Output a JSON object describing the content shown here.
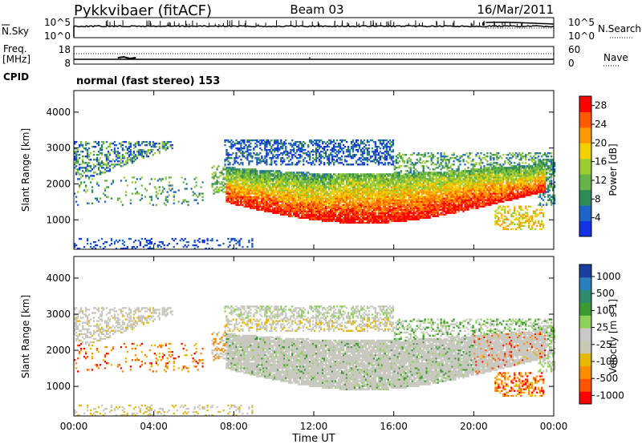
{
  "header": {
    "station": "Pykkvibaer (fitACF)",
    "beam": "Beam 03",
    "date": "16/Mar/2011"
  },
  "strip": {
    "nsky_label": "N.Sky",
    "nsky_top": "10^5",
    "nsky_bottom": "10^0",
    "nsearch_top": "10^5",
    "nsearch_bottom": "10^0",
    "nsearch_label": "N.Search",
    "freq_label": "Freq.",
    "freq_units": "[MHz]",
    "freq_top": "18",
    "freq_bottom": "8",
    "nave_top": "60",
    "nave_bottom": "0",
    "nave_label": "Nave",
    "cpid_label": "CPID",
    "cpid_text": "normal (fast stereo) 153"
  },
  "colors": {
    "power": [
      "#1432e6",
      "#1e64c8",
      "#2e8b57",
      "#66b347",
      "#9acd32",
      "#f5d000",
      "#ff9900",
      "#ff5a00",
      "#ff0000"
    ],
    "velocity": [
      "#ff0000",
      "#ff5500",
      "#ff8c00",
      "#e6b800",
      "#c8c8b4",
      "#c8c8c8",
      "#8fd158",
      "#3c9a32",
      "#2e8b6e",
      "#2a7fbf",
      "#1b3fa0"
    ],
    "gray": "#c8c8c0"
  },
  "chart_data": [
    {
      "type": "heatmap",
      "parameter": "Power",
      "ylabel": "Slant Range [km]",
      "yticks": [
        1000,
        2000,
        3000,
        4000
      ],
      "colorbar": {
        "label": "Power [dB]",
        "ticks": [
          "4",
          "8",
          "12",
          "16",
          "20",
          "24",
          "28"
        ],
        "range": [
          0,
          30
        ]
      }
    },
    {
      "type": "heatmap",
      "parameter": "Velocity",
      "ylabel": "Slant Range [km]",
      "yticks": [
        1000,
        2000,
        3000,
        4000
      ],
      "colorbar": {
        "label": "Velocity [m s-1]",
        "ticks": [
          "1000",
          "500",
          "100",
          "25",
          "-25",
          "-100",
          "-500",
          "-1000"
        ]
      }
    }
  ],
  "xaxis": {
    "label": "Time UT",
    "ticks": [
      "00:00",
      "04:00",
      "08:00",
      "12:00",
      "16:00",
      "20:00",
      "00:00"
    ]
  }
}
